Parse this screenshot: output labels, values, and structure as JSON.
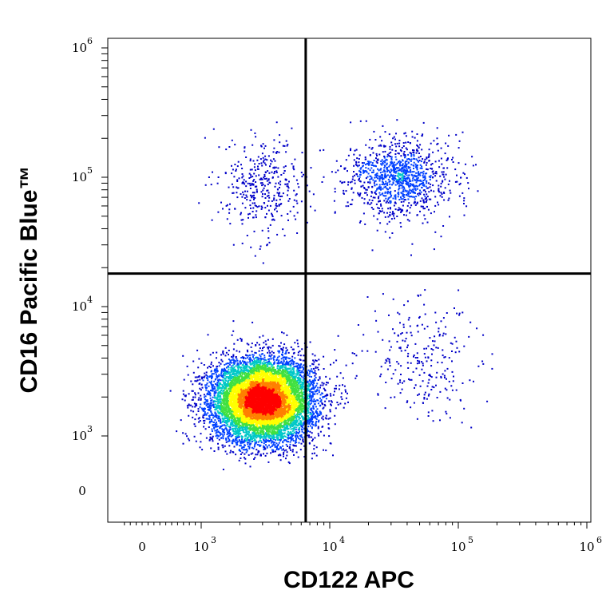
{
  "chart_data": {
    "type": "scatter",
    "subtype": "flow-cytometry pseudocolor density dot plot",
    "xlabel": "CD122 APC",
    "ylabel": "CD16 Pacific Blue™",
    "x_scale": "biexponential (linear near 0, log above)",
    "y_scale": "biexponential (linear near 0, log above)",
    "xlim": [
      -300,
      1100000
    ],
    "ylim": [
      -400,
      1100000
    ],
    "x_ticks": [
      {
        "value": 0,
        "base": "0",
        "exp": ""
      },
      {
        "value": 1000,
        "base": "10",
        "exp": "3"
      },
      {
        "value": 10000,
        "base": "10",
        "exp": "4"
      },
      {
        "value": 100000,
        "base": "10",
        "exp": "5"
      },
      {
        "value": 1000000,
        "base": "10",
        "exp": "6"
      }
    ],
    "y_ticks": [
      {
        "value": 0,
        "base": "0",
        "exp": ""
      },
      {
        "value": 1000,
        "base": "10",
        "exp": "3"
      },
      {
        "value": 10000,
        "base": "10",
        "exp": "4"
      },
      {
        "value": 100000,
        "base": "10",
        "exp": "5"
      },
      {
        "value": 1000000,
        "base": "10",
        "exp": "6"
      }
    ],
    "quadrant_gates": {
      "x": 6500,
      "y": 18000
    },
    "populations": [
      {
        "quadrant": "lower-left/lower-right border",
        "x_center": 3000,
        "y_center": 1900,
        "relative_size": "major"
      },
      {
        "quadrant": "upper-left",
        "x_center": 3000,
        "y_center": 85000,
        "relative_size": "minor"
      },
      {
        "quadrant": "upper-right",
        "x_center": 35000,
        "y_center": 100000,
        "relative_size": "moderate"
      },
      {
        "quadrant": "lower-right",
        "x_center": 50000,
        "y_center": 4000,
        "relative_size": "sparse"
      }
    ],
    "color_scale": [
      "#0000c8",
      "#0040ff",
      "#00c8c8",
      "#40e040",
      "#ffff00",
      "#ff8000",
      "#ff0000"
    ],
    "grid": false,
    "legend": "none"
  }
}
